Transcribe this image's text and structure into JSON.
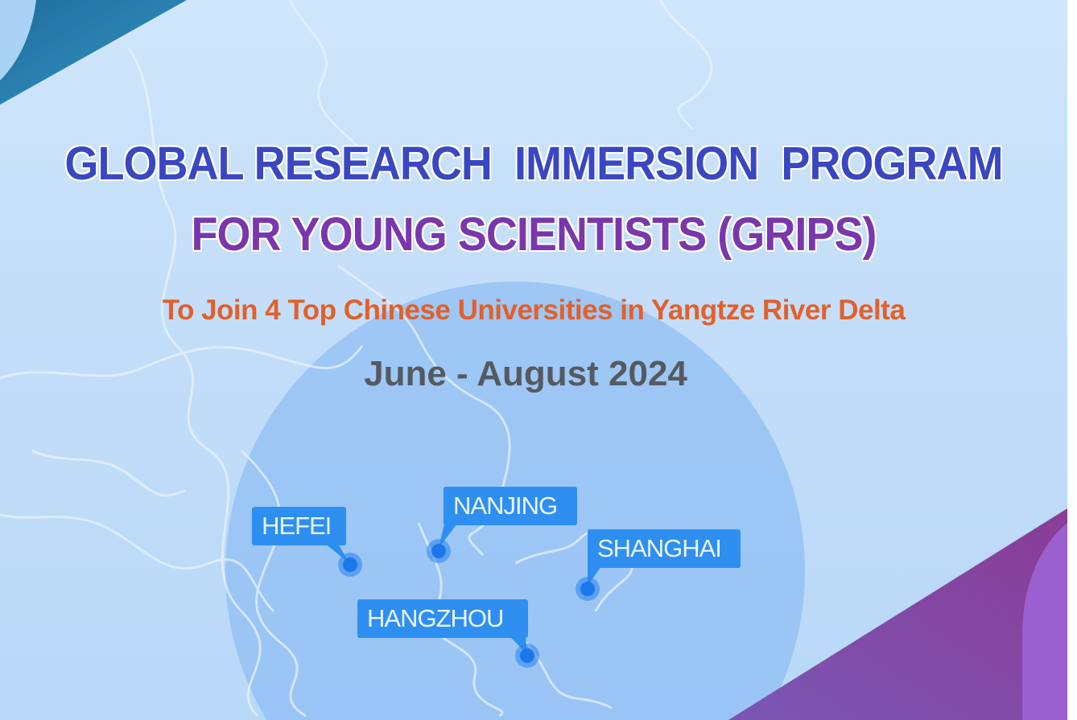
{
  "title": {
    "line1": "GLOBAL RESEARCH  IMMERSION  PROGRAM",
    "line2": "FOR YOUNG SCIENTISTS (GRIPS)"
  },
  "subtitle": "To Join 4 Top Chinese Universities in Yangtze River Delta",
  "dates": "June - August 2024",
  "cities": [
    {
      "name": "HEFEI"
    },
    {
      "name": "NANJING"
    },
    {
      "name": "SHANGHAI"
    },
    {
      "name": "HANGZHOU"
    }
  ],
  "colors": {
    "title_line1": "#3a47c2",
    "title_line2": "#7a37ad",
    "subtitle": "#e2602a",
    "dates": "#555a60",
    "city_label": "#2f8ff0",
    "corner_teal": "#2478a8",
    "corner_purple": "#84449e"
  }
}
